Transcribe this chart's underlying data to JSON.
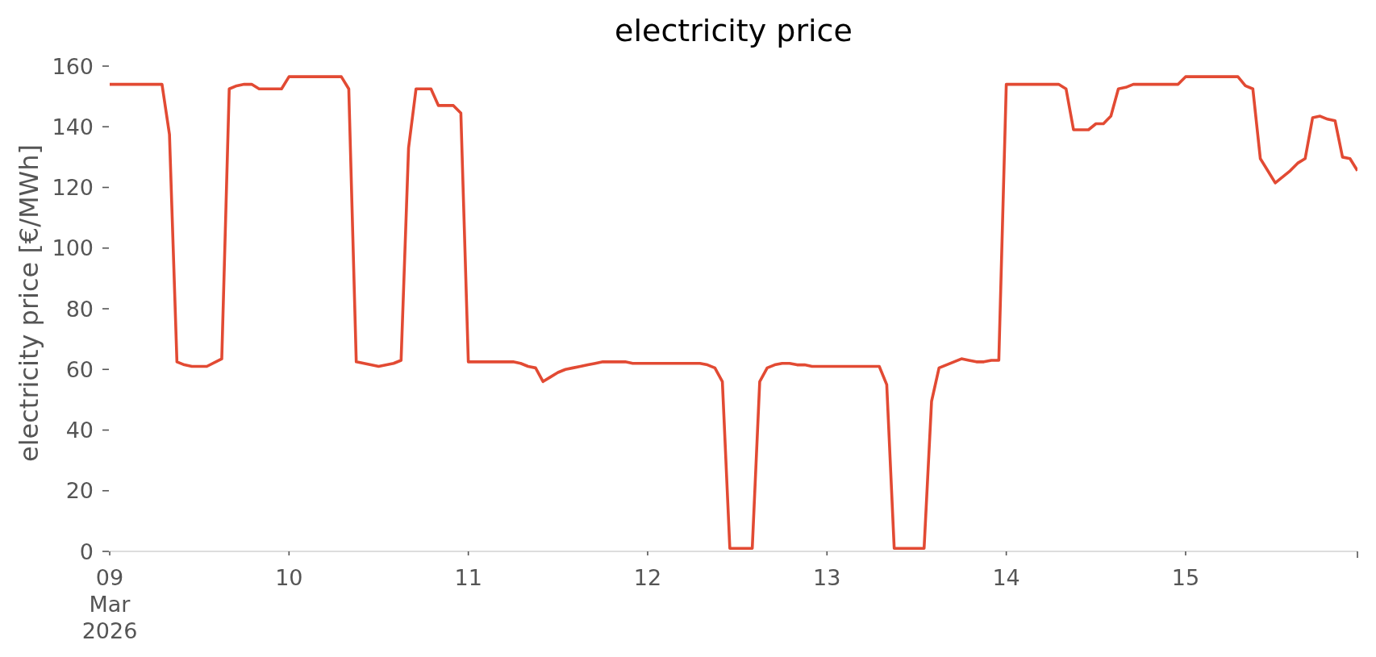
{
  "chart_data": {
    "type": "line",
    "title": "electricity price",
    "ylabel": "electricity price [€/MWh]",
    "x": [
      "2026-03-09T00:00",
      "2026-03-09T07:00",
      "2026-03-09T08:00",
      "2026-03-09T09:00",
      "2026-03-09T10:00",
      "2026-03-09T11:00",
      "2026-03-09T13:00",
      "2026-03-09T15:00",
      "2026-03-09T16:00",
      "2026-03-09T17:00",
      "2026-03-09T18:00",
      "2026-03-09T19:00",
      "2026-03-09T20:00",
      "2026-03-09T23:00",
      "2026-03-10T00:00",
      "2026-03-10T07:00",
      "2026-03-10T08:00",
      "2026-03-10T09:00",
      "2026-03-10T12:00",
      "2026-03-10T14:00",
      "2026-03-10T15:00",
      "2026-03-10T16:00",
      "2026-03-10T17:00",
      "2026-03-10T19:00",
      "2026-03-10T20:00",
      "2026-03-10T22:00",
      "2026-03-10T23:00",
      "2026-03-11T00:00",
      "2026-03-11T06:00",
      "2026-03-11T07:00",
      "2026-03-11T08:00",
      "2026-03-11T09:00",
      "2026-03-11T10:00",
      "2026-03-11T11:00",
      "2026-03-11T12:00",
      "2026-03-11T13:00",
      "2026-03-11T14:00",
      "2026-03-11T15:00",
      "2026-03-11T16:00",
      "2026-03-11T17:00",
      "2026-03-11T18:00",
      "2026-03-11T21:00",
      "2026-03-11T22:00",
      "2026-03-12T07:00",
      "2026-03-12T08:00",
      "2026-03-12T09:00",
      "2026-03-12T10:00",
      "2026-03-12T11:00",
      "2026-03-12T14:00",
      "2026-03-12T15:00",
      "2026-03-12T16:00",
      "2026-03-12T17:00",
      "2026-03-12T18:00",
      "2026-03-12T19:00",
      "2026-03-12T20:00",
      "2026-03-12T21:00",
      "2026-03-12T22:00",
      "2026-03-13T07:00",
      "2026-03-13T08:00",
      "2026-03-13T09:00",
      "2026-03-13T13:00",
      "2026-03-13T14:00",
      "2026-03-13T15:00",
      "2026-03-13T16:00",
      "2026-03-13T17:00",
      "2026-03-13T18:00",
      "2026-03-13T19:00",
      "2026-03-13T20:00",
      "2026-03-13T21:00",
      "2026-03-13T22:00",
      "2026-03-13T23:00",
      "2026-03-14T00:00",
      "2026-03-14T07:00",
      "2026-03-14T08:00",
      "2026-03-14T09:00",
      "2026-03-14T11:00",
      "2026-03-14T12:00",
      "2026-03-14T13:00",
      "2026-03-14T14:00",
      "2026-03-14T15:00",
      "2026-03-14T16:00",
      "2026-03-14T17:00",
      "2026-03-14T23:00",
      "2026-03-15T00:00",
      "2026-03-15T07:00",
      "2026-03-15T08:00",
      "2026-03-15T09:00",
      "2026-03-15T10:00",
      "2026-03-15T11:00",
      "2026-03-15T12:00",
      "2026-03-15T13:00",
      "2026-03-15T14:00",
      "2026-03-15T15:00",
      "2026-03-15T16:00",
      "2026-03-15T17:00",
      "2026-03-15T18:00",
      "2026-03-15T19:00",
      "2026-03-15T20:00",
      "2026-03-15T21:00",
      "2026-03-15T22:00",
      "2026-03-15T23:00"
    ],
    "series": [
      {
        "color": "#e24a33",
        "values": [
          154,
          154,
          137.5,
          62.5,
          61.5,
          61,
          61,
          63.5,
          152.5,
          153.5,
          154,
          154,
          152.5,
          152.5,
          156.5,
          156.5,
          152.5,
          62.5,
          61,
          62,
          63,
          133,
          152.5,
          152.5,
          147,
          147,
          144.5,
          62.5,
          62.5,
          62,
          61,
          60.5,
          56,
          57.5,
          59,
          60,
          60.5,
          61,
          61.5,
          62,
          62.5,
          62.5,
          62,
          62,
          61.5,
          60.5,
          56,
          1,
          1,
          56,
          60.5,
          61.5,
          62,
          62,
          61.5,
          61.5,
          61,
          61,
          55,
          1,
          1,
          49.5,
          60.5,
          61.5,
          62.5,
          63.5,
          63,
          62.5,
          62.5,
          63,
          63,
          154,
          154,
          152.5,
          139,
          139,
          141,
          141,
          143.5,
          152.5,
          153,
          154,
          154,
          156.5,
          156.5,
          153.5,
          152.5,
          129.5,
          125.5,
          121.5,
          123.5,
          125.5,
          128,
          129.5,
          143,
          143.5,
          142.5,
          142,
          130,
          129.5,
          125.5
        ]
      }
    ],
    "xlim": [
      "2026-03-09T00:00",
      "2026-03-15T23:00"
    ],
    "xticks": [
      {
        "value": "2026-03-09",
        "label": "09\nMar\n2026"
      },
      {
        "value": "2026-03-10",
        "label": "10"
      },
      {
        "value": "2026-03-11",
        "label": "11"
      },
      {
        "value": "2026-03-12",
        "label": "12"
      },
      {
        "value": "2026-03-13",
        "label": "13"
      },
      {
        "value": "2026-03-14",
        "label": "14"
      },
      {
        "value": "2026-03-15",
        "label": "15"
      },
      {
        "value": "2026-03-15T23:00",
        "label": null
      }
    ],
    "ylim": [
      0,
      160
    ],
    "yticks": [
      0,
      20,
      40,
      60,
      80,
      100,
      120,
      140,
      160
    ]
  }
}
